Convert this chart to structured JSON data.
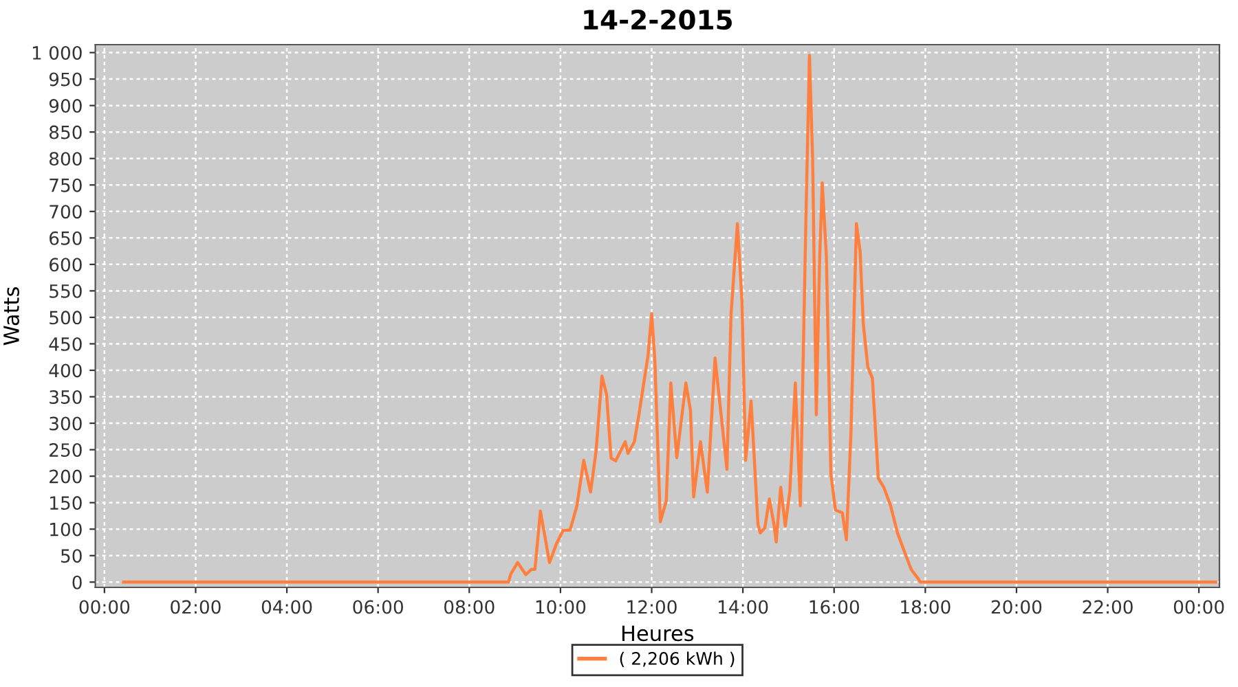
{
  "chart_data": {
    "type": "line",
    "title": "14-2-2015",
    "xlabel": "Heures",
    "ylabel": "Watts",
    "xlim": [
      -0.2,
      24.45
    ],
    "ylim": [
      -10,
      1015
    ],
    "xticks": [
      {
        "value": 0,
        "label": "00:00"
      },
      {
        "value": 2,
        "label": "02:00"
      },
      {
        "value": 4,
        "label": "04:00"
      },
      {
        "value": 6,
        "label": "06:00"
      },
      {
        "value": 8,
        "label": "08:00"
      },
      {
        "value": 10,
        "label": "10:00"
      },
      {
        "value": 12,
        "label": "12:00"
      },
      {
        "value": 14,
        "label": "14:00"
      },
      {
        "value": 16,
        "label": "16:00"
      },
      {
        "value": 18,
        "label": "18:00"
      },
      {
        "value": 20,
        "label": "20:00"
      },
      {
        "value": 22,
        "label": "22:00"
      },
      {
        "value": 24,
        "label": "00:00"
      }
    ],
    "yticks": [
      0,
      50,
      100,
      150,
      200,
      250,
      300,
      350,
      400,
      450,
      500,
      550,
      600,
      650,
      700,
      750,
      800,
      850,
      900,
      950,
      {
        "value": 1000,
        "label": "1 000"
      }
    ],
    "grid": true,
    "legend": "bottom",
    "marker": "none",
    "line_style": "solid",
    "series": [
      {
        "name": "( 2,206 kWh )",
        "color": "#ff7f3f",
        "x": [
          0.42,
          8.86,
          8.91,
          9.06,
          9.24,
          9.36,
          9.44,
          9.56,
          9.76,
          9.91,
          10.06,
          10.21,
          10.36,
          10.51,
          10.66,
          10.78,
          10.91,
          11.01,
          11.11,
          11.21,
          11.42,
          11.48,
          11.62,
          11.72,
          11.82,
          11.92,
          12.0,
          12.07,
          12.12,
          12.19,
          12.32,
          12.42,
          12.55,
          12.75,
          12.85,
          12.92,
          13.07,
          13.22,
          13.39,
          13.65,
          13.74,
          13.88,
          13.98,
          14.06,
          14.18,
          14.33,
          14.38,
          14.48,
          14.58,
          14.68,
          14.73,
          14.83,
          14.93,
          15.03,
          15.15,
          15.26,
          15.38,
          15.46,
          15.53,
          15.61,
          15.68,
          15.74,
          15.83,
          15.93,
          16.03,
          16.18,
          16.27,
          16.37,
          16.49,
          16.57,
          16.64,
          16.74,
          16.84,
          16.97,
          17.09,
          17.24,
          17.39,
          17.54,
          17.69,
          17.84,
          17.89,
          24.37
        ],
        "values": [
          0,
          0,
          15,
          37,
          14,
          24,
          24,
          134,
          37,
          72,
          98,
          98,
          144,
          230,
          170,
          247,
          389,
          355,
          234,
          229,
          265,
          243,
          265,
          316,
          372,
          428,
          507,
          419,
          290,
          114,
          153,
          376,
          235,
          376,
          325,
          161,
          265,
          170,
          423,
          213,
          505,
          677,
          531,
          230,
          342,
          110,
          93,
          102,
          157,
          110,
          76,
          179,
          106,
          172,
          376,
          144,
          677,
          995,
          797,
          316,
          600,
          754,
          617,
          204,
          136,
          131,
          80,
          282,
          677,
          625,
          488,
          406,
          385,
          196,
          179,
          144,
          93,
          58,
          24,
          7,
          0,
          0
        ]
      }
    ]
  }
}
